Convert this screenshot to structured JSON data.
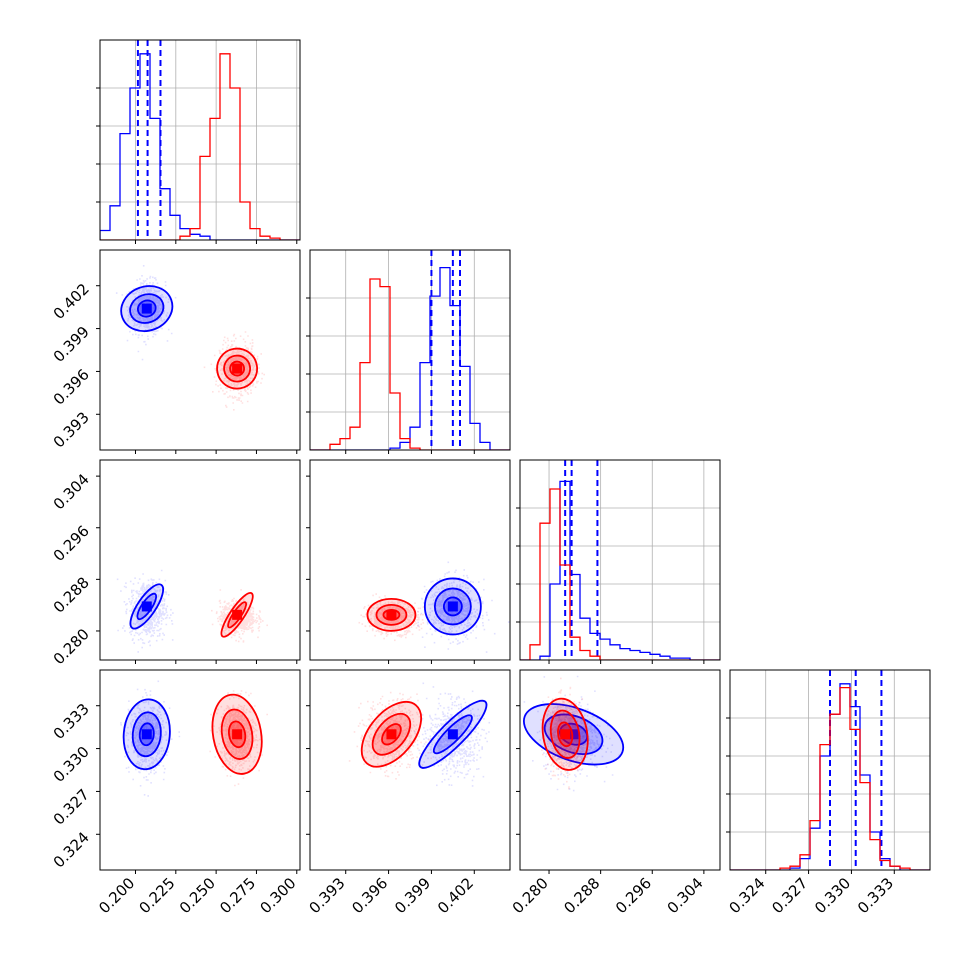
{
  "chart_data": {
    "type": "corner",
    "parameters": [
      "",
      "",
      "",
      ""
    ],
    "ranges": [
      [
        0.178,
        0.302
      ],
      [
        0.3905,
        0.4045
      ],
      [
        0.2755,
        0.3065
      ],
      [
        0.3215,
        0.3355
      ]
    ],
    "ticks": [
      [
        0.2,
        0.225,
        0.25,
        0.275,
        0.3
      ],
      [
        0.393,
        0.396,
        0.399,
        0.402
      ],
      [
        0.28,
        0.288,
        0.296,
        0.304
      ],
      [
        0.324,
        0.327,
        0.33,
        0.333
      ]
    ],
    "tick_labels": [
      [
        "0.200",
        "0.225",
        "0.250",
        "0.275",
        "0.300"
      ],
      [
        "0.393",
        "0.396",
        "0.399",
        "0.402"
      ],
      [
        "0.280",
        "0.288",
        "0.296",
        "0.304"
      ],
      [
        "0.324",
        "0.327",
        "0.330",
        "0.333"
      ]
    ],
    "series": [
      {
        "color": "#0000ff",
        "means": [
          0.207,
          0.4005,
          0.2835,
          0.3308
        ],
        "sigmas": [
          0.0055,
          0.0009,
          0.0022,
          0.0012
        ],
        "quantiles": [
          [
            0.2015,
            0.2075,
            0.2155
          ],
          [
            0.399,
            0.4005,
            0.401
          ],
          [
            0.2825,
            0.2835,
            0.2875
          ],
          [
            0.3285,
            0.3303,
            0.3321
          ]
        ],
        "histograms": [
          [
            0.05,
            0.18,
            0.56,
            0.8,
            0.98,
            0.64,
            0.27,
            0.13,
            0.06,
            0.03,
            0.02,
            0,
            0,
            0,
            0,
            0,
            0,
            0,
            0,
            0
          ],
          [
            0,
            0,
            0,
            0,
            0,
            0,
            0,
            0,
            0.01,
            0.04,
            0.12,
            0.46,
            0.81,
            0.96,
            0.76,
            0.44,
            0.14,
            0.04,
            0,
            0
          ],
          [
            0,
            0,
            0.02,
            0.4,
            0.94,
            0.45,
            0.22,
            0.14,
            0.11,
            0.08,
            0.06,
            0.05,
            0.04,
            0.03,
            0.02,
            0.01,
            0.01,
            0,
            0,
            0
          ],
          [
            0,
            0,
            0,
            0,
            0,
            0,
            0.01,
            0.06,
            0.22,
            0.6,
            0.82,
            0.98,
            0.86,
            0.5,
            0.2,
            0.06,
            0.02,
            0,
            0,
            0
          ]
        ]
      },
      {
        "color": "#ff0000",
        "means": [
          0.263,
          0.3962,
          0.2822,
          0.331
        ],
        "sigmas": [
          0.0055,
          0.0009,
          0.0012,
          0.0012
        ],
        "quantiles": [],
        "histograms": [
          [
            0,
            0,
            0,
            0,
            0,
            0,
            0,
            0,
            0.02,
            0.06,
            0.44,
            0.64,
            0.98,
            0.8,
            0.2,
            0.06,
            0.02,
            0.01,
            0,
            0
          ],
          [
            0,
            0,
            0.03,
            0.06,
            0.12,
            0.46,
            0.9,
            0.86,
            0.3,
            0.06,
            0.01,
            0,
            0,
            0,
            0,
            0,
            0,
            0,
            0,
            0
          ],
          [
            0,
            0.08,
            0.72,
            0.9,
            0.5,
            0.12,
            0.05,
            0.02,
            0,
            0,
            0,
            0,
            0,
            0,
            0,
            0,
            0,
            0,
            0,
            0
          ],
          [
            0,
            0,
            0,
            0,
            0,
            0.01,
            0.02,
            0.08,
            0.26,
            0.66,
            0.82,
            0.96,
            0.74,
            0.46,
            0.16,
            0.05,
            0.02,
            0.01,
            0,
            0
          ]
        ]
      }
    ],
    "panels": [
      {
        "row": 1,
        "col": 0,
        "centers": [
          [
            0.207,
            0.4004
          ],
          [
            0.263,
            0.3962
          ]
        ],
        "ellipses": [
          [
            [
              26,
              22,
              -20
            ],
            [
              17,
              14,
              -20
            ],
            [
              9,
              8,
              -20
            ]
          ],
          [
            [
              20,
              20,
              -10
            ],
            [
              13,
              13,
              -10
            ],
            [
              7,
              7,
              -10
            ]
          ]
        ]
      },
      {
        "row": 2,
        "col": 0,
        "centers": [
          [
            0.207,
            0.2838
          ],
          [
            0.263,
            0.2825
          ]
        ],
        "ellipses": [
          [
            [
              26,
              9,
              -56
            ],
            [
              15,
              5,
              -56
            ]
          ],
          [
            [
              26,
              7,
              -56
            ],
            [
              15,
              4,
              -56
            ]
          ]
        ]
      },
      {
        "row": 2,
        "col": 1,
        "centers": [
          [
            0.4005,
            0.2838
          ],
          [
            0.3962,
            0.2825
          ]
        ],
        "ellipses": [
          [
            [
              28,
              28,
              0
            ],
            [
              18,
              18,
              0
            ],
            [
              9,
              9,
              0
            ]
          ],
          [
            [
              24,
              16,
              0
            ],
            [
              15,
              10,
              0
            ],
            [
              8,
              5,
              0
            ]
          ]
        ]
      },
      {
        "row": 3,
        "col": 0,
        "centers": [
          [
            0.207,
            0.331
          ],
          [
            0.263,
            0.331
          ]
        ],
        "ellipses": [
          [
            [
              23,
              35,
              5
            ],
            [
              14,
              22,
              5
            ],
            [
              7,
              11,
              5
            ]
          ],
          [
            [
              24,
              40,
              -10
            ],
            [
              15,
              25,
              -10
            ],
            [
              8,
              13,
              -10
            ]
          ]
        ]
      },
      {
        "row": 3,
        "col": 1,
        "centers": [
          [
            0.4005,
            0.331
          ],
          [
            0.3962,
            0.331
          ]
        ],
        "ellipses": [
          [
            [
              46,
              12,
              -45
            ],
            [
              26,
              7,
              -45
            ]
          ],
          [
            [
              38,
              22,
              -50
            ],
            [
              24,
              14,
              -50
            ],
            [
              12,
              7,
              -50
            ]
          ]
        ]
      },
      {
        "row": 3,
        "col": 2,
        "centers": [
          [
            0.2838,
            0.331
          ],
          [
            0.2825,
            0.331
          ]
        ],
        "ellipses": [
          [
            [
              52,
              26,
              20
            ],
            [
              30,
              18,
              20
            ],
            [
              14,
              10,
              20
            ]
          ],
          [
            [
              22,
              36,
              -10
            ],
            [
              14,
              24,
              -10
            ],
            [
              7,
              12,
              -10
            ]
          ]
        ]
      }
    ],
    "grid": true,
    "legend": "none"
  }
}
